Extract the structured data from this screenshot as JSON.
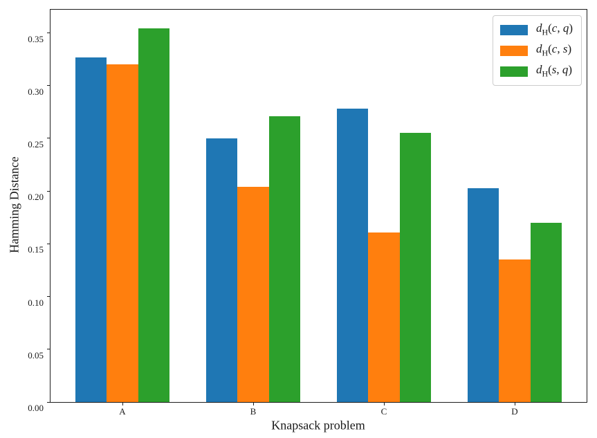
{
  "chart_data": {
    "type": "bar",
    "title": "",
    "xlabel": "Knapsack problem",
    "ylabel": "Hamming Distance",
    "categories": [
      "A",
      "B",
      "C",
      "D"
    ],
    "series": [
      {
        "name": "d_H(c, q)",
        "color": "#1f77b4",
        "values": [
          0.327,
          0.25,
          0.278,
          0.203
        ]
      },
      {
        "name": "d_H(c, s)",
        "color": "#ff7f0e",
        "values": [
          0.32,
          0.204,
          0.161,
          0.135
        ]
      },
      {
        "name": "d_H(s, q)",
        "color": "#2ca02c",
        "values": [
          0.354,
          0.271,
          0.255,
          0.17
        ]
      }
    ],
    "ylim": [
      0,
      0.372
    ],
    "yticks": [
      "0.00",
      "0.05",
      "0.10",
      "0.15",
      "0.20",
      "0.25",
      "0.30",
      "0.35"
    ],
    "grid": false,
    "legend_position": "upper right",
    "spine_color": "#1c1c1c",
    "background": "#ffffff"
  }
}
